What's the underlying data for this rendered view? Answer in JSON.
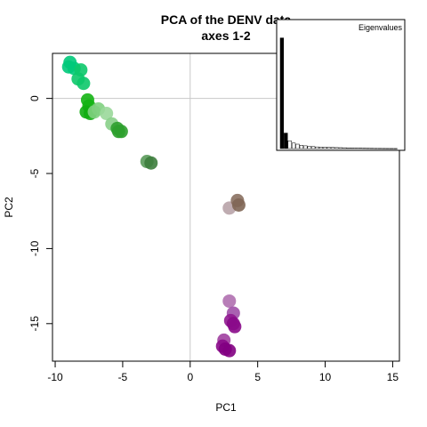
{
  "chart_data": {
    "type": "scatter",
    "title_line1": "PCA of the DENV data",
    "title_line2": "axes 1-2",
    "xlabel": "PC1",
    "ylabel": "PC2",
    "xlim": [
      -10.2,
      15.5
    ],
    "ylim": [
      -17.5,
      3.0
    ],
    "xticks": [
      -10,
      -5,
      0,
      5,
      10,
      15
    ],
    "yticks": [
      0,
      -5,
      -10,
      -15
    ],
    "xtick_labels": [
      "-10",
      "-5",
      "0",
      "5",
      "10",
      "15"
    ],
    "ytick_labels": [
      "0",
      "-5",
      "-10",
      "-15"
    ],
    "reference_lines": {
      "x": 0,
      "y": 0,
      "color": "#c8c8c8"
    },
    "grid": false,
    "points": [
      {
        "x": -8.9,
        "y": 2.4,
        "color": "#00c97a"
      },
      {
        "x": -9.0,
        "y": 2.1,
        "color": "#00c97a"
      },
      {
        "x": -8.6,
        "y": 2.0,
        "color": "#00c97a"
      },
      {
        "x": -8.1,
        "y": 1.9,
        "color": "#0cc86a"
      },
      {
        "x": -8.3,
        "y": 1.3,
        "color": "#0cc86a"
      },
      {
        "x": -7.9,
        "y": 1.0,
        "color": "#0cc86a"
      },
      {
        "x": -7.6,
        "y": -0.1,
        "color": "#14b414"
      },
      {
        "x": -7.5,
        "y": -0.5,
        "color": "#14b414"
      },
      {
        "x": -7.7,
        "y": -0.9,
        "color": "#10ad10"
      },
      {
        "x": -7.4,
        "y": -1.0,
        "color": "#10ad10"
      },
      {
        "x": -7.1,
        "y": -0.9,
        "color": "#7fd07f"
      },
      {
        "x": -6.8,
        "y": -0.7,
        "color": "#7fd07f"
      },
      {
        "x": -6.2,
        "y": -1.0,
        "color": "#9ad89a"
      },
      {
        "x": -5.8,
        "y": -1.7,
        "color": "#88cf88"
      },
      {
        "x": -5.4,
        "y": -2.0,
        "color": "#2ea02e"
      },
      {
        "x": -5.3,
        "y": -2.2,
        "color": "#2ea02e"
      },
      {
        "x": -5.1,
        "y": -2.2,
        "color": "#2ea02e"
      },
      {
        "x": -3.2,
        "y": -4.2,
        "color": "#5a9a5a"
      },
      {
        "x": -2.9,
        "y": -4.3,
        "color": "#3d7d3d"
      },
      {
        "x": 2.9,
        "y": -7.3,
        "color": "#b8a3a8"
      },
      {
        "x": 3.5,
        "y": -6.8,
        "color": "#8a7060"
      },
      {
        "x": 3.6,
        "y": -7.1,
        "color": "#7f6655"
      },
      {
        "x": 2.9,
        "y": -13.5,
        "color": "#b070b0"
      },
      {
        "x": 3.2,
        "y": -14.3,
        "color": "#a050a8"
      },
      {
        "x": 3.0,
        "y": -14.8,
        "color": "#901890"
      },
      {
        "x": 3.2,
        "y": -15.0,
        "color": "#8a0a8a"
      },
      {
        "x": 3.3,
        "y": -15.2,
        "color": "#8a0a8a"
      },
      {
        "x": 2.5,
        "y": -16.1,
        "color": "#a040a0"
      },
      {
        "x": 2.4,
        "y": -16.5,
        "color": "#8a0a8a"
      },
      {
        "x": 2.6,
        "y": -16.7,
        "color": "#820082"
      },
      {
        "x": 2.9,
        "y": -16.8,
        "color": "#820082"
      }
    ],
    "inset": {
      "type": "bar",
      "title": "Eigenvalues",
      "values": [
        100,
        14,
        7,
        5,
        4,
        3,
        2.5,
        2,
        1.8,
        1.5,
        1.3,
        1.2,
        1.1,
        1,
        0.9,
        0.8,
        0.7,
        0.6,
        0.5,
        0.45,
        0.4,
        0.35,
        0.3,
        0.25,
        0.2,
        0.18,
        0.15,
        0.12,
        0.1,
        0.08
      ],
      "filled_count": 2,
      "ylim": [
        0,
        115
      ]
    }
  }
}
